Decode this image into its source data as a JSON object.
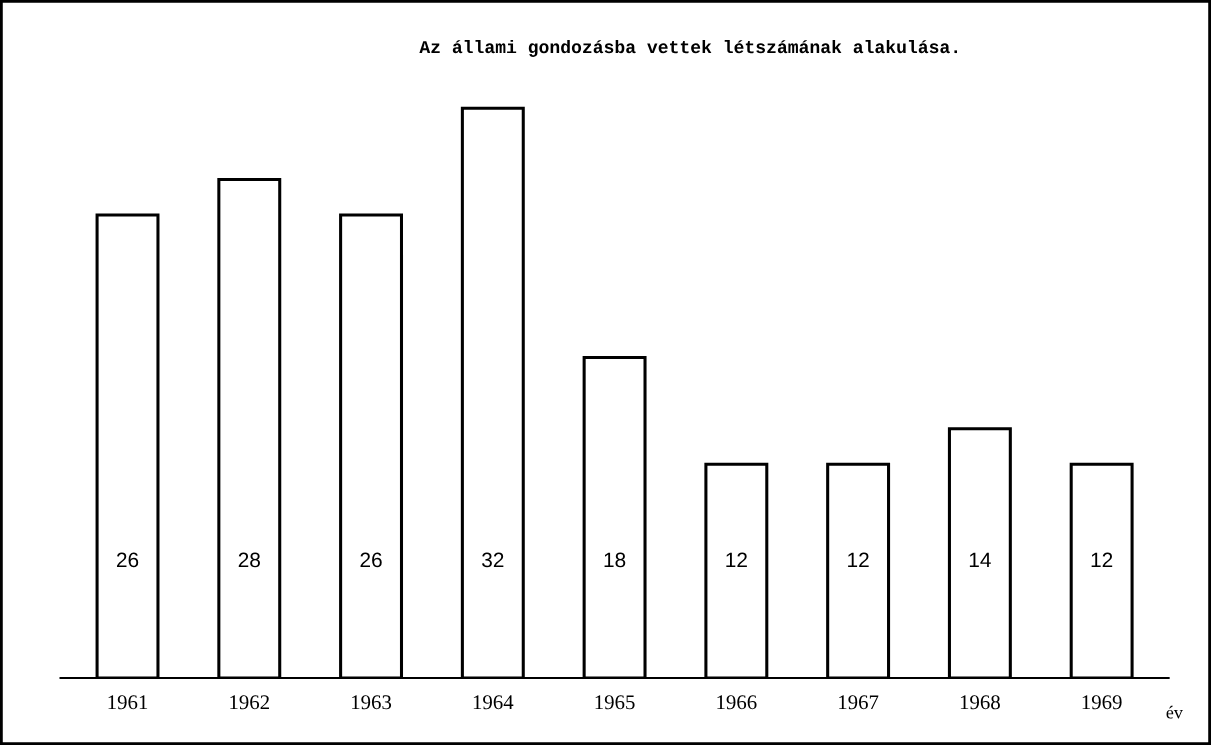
{
  "chart_data": {
    "type": "bar",
    "title": "Az állami gondozásba vettek létszámának alakulása.",
    "xlabel": "év",
    "categories": [
      "1961",
      "1962",
      "1963",
      "1964",
      "1965",
      "1966",
      "1967",
      "1968",
      "1969"
    ],
    "values": [
      26,
      28,
      26,
      32,
      18,
      12,
      12,
      14,
      12
    ],
    "color": "#ffffff",
    "data_labels": true
  }
}
